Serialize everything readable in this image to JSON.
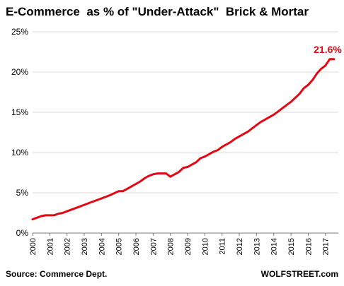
{
  "chart_data": {
    "type": "line",
    "title": "E-Commerce  as % of \"Under-Attack\"  Brick & Mortar",
    "source": "Source: Commerce Dept.",
    "watermark": "WOLFSTREET.com",
    "ylim": [
      0,
      25
    ],
    "y_ticks": [
      "0%",
      "5%",
      "10%",
      "15%",
      "20%",
      "25%"
    ],
    "x_ticks": [
      "2000",
      "2001",
      "2002",
      "2003",
      "2004",
      "2005",
      "2006",
      "2007",
      "2008",
      "2009",
      "2010",
      "2011",
      "2012",
      "2013",
      "2014",
      "2015",
      "2016",
      "2017"
    ],
    "end_label": "21.6%",
    "line_color": "#e30613",
    "grid": true,
    "series": [
      {
        "x": [
          2000.0,
          2000.25,
          2000.5,
          2000.75,
          2001.0,
          2001.25,
          2001.5,
          2001.75,
          2002.0,
          2002.5,
          2003.0,
          2003.5,
          2004.0,
          2004.5,
          2005.0,
          2005.25,
          2005.5,
          2005.75,
          2006.0,
          2006.25,
          2006.5,
          2006.75,
          2007.0,
          2007.25,
          2007.5,
          2007.75,
          2008.0,
          2008.25,
          2008.5,
          2008.75,
          2009.0,
          2009.25,
          2009.5,
          2009.75,
          2010.0,
          2010.25,
          2010.5,
          2010.75,
          2011.0,
          2011.25,
          2011.5,
          2011.75,
          2012.0,
          2012.25,
          2012.5,
          2012.75,
          2013.0,
          2013.25,
          2013.5,
          2013.75,
          2014.0,
          2014.25,
          2014.5,
          2014.75,
          2015.0,
          2015.25,
          2015.5,
          2015.75,
          2016.0,
          2016.25,
          2016.5,
          2016.75,
          2017.0,
          2017.25,
          2017.5
        ],
        "values": [
          1.7,
          1.9,
          2.1,
          2.2,
          2.2,
          2.2,
          2.4,
          2.5,
          2.7,
          3.1,
          3.5,
          3.9,
          4.3,
          4.7,
          5.2,
          5.2,
          5.5,
          5.8,
          6.1,
          6.4,
          6.8,
          7.1,
          7.3,
          7.4,
          7.4,
          7.4,
          7.0,
          7.3,
          7.6,
          8.1,
          8.2,
          8.5,
          8.8,
          9.3,
          9.5,
          9.8,
          10.1,
          10.3,
          10.7,
          11.0,
          11.3,
          11.7,
          12.0,
          12.3,
          12.6,
          13.0,
          13.4,
          13.8,
          14.1,
          14.4,
          14.7,
          15.1,
          15.5,
          15.9,
          16.3,
          16.8,
          17.3,
          18.0,
          18.4,
          19.0,
          19.8,
          20.4,
          20.8,
          21.6,
          21.6
        ]
      }
    ]
  }
}
